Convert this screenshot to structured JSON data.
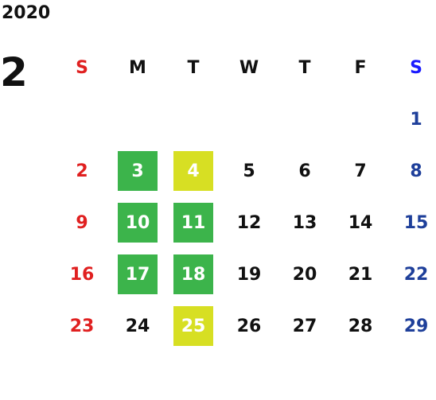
{
  "calendar": {
    "year": "2020",
    "month": "2",
    "days_of_week": [
      "S",
      "M",
      "T",
      "W",
      "T",
      "F",
      "S"
    ],
    "weeks": [
      [
        "",
        "",
        "",
        "",
        "",
        "",
        "1"
      ],
      [
        "2",
        "3",
        "4",
        "5",
        "6",
        "7",
        "8"
      ],
      [
        "9",
        "10",
        "11",
        "12",
        "13",
        "14",
        "15"
      ],
      [
        "16",
        "17",
        "18",
        "19",
        "20",
        "21",
        "22"
      ],
      [
        "23",
        "24",
        "25",
        "26",
        "27",
        "28",
        "29"
      ]
    ],
    "highlights": {
      "green": [
        "3",
        "10",
        "11",
        "17",
        "18"
      ],
      "yellow": [
        "4",
        "25"
      ]
    }
  },
  "colors": {
    "sunday": "#e02020",
    "saturday_header": "#1a1aff",
    "saturday": "#1e3f9a",
    "weekday": "#111111",
    "green_highlight": "#3cb44b",
    "yellow_highlight": "#d7df23",
    "highlight_text": "#ffffff"
  }
}
